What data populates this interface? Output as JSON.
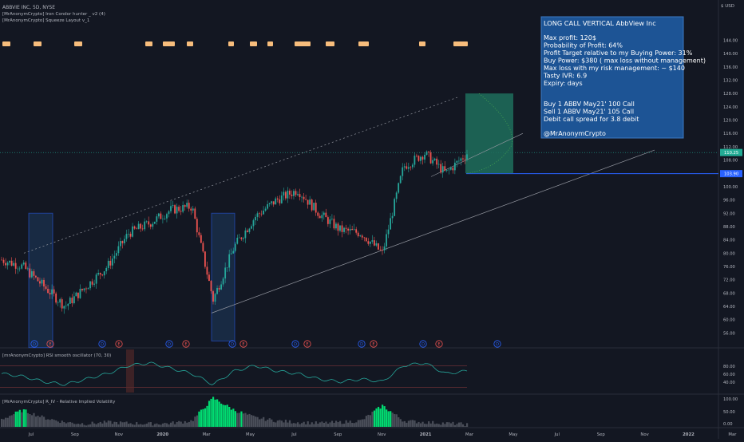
{
  "header": {
    "symbol": "ABBVIE INC, 5D, NYSE",
    "indicator1": "[MrAnonymCrypto] Iron Condor hunter _ v2 (4)",
    "indicator2": "[MrAnonymCrypto] Squeeze Layout v_1"
  },
  "price_axis": {
    "currency": "$ USD",
    "ticks": [
      "144.00",
      "140.00",
      "136.00",
      "132.00",
      "128.00",
      "124.00",
      "120.00",
      "116.00",
      "112.00",
      "108.00",
      "104.00",
      "100.00",
      "96.00",
      "92.00",
      "88.00",
      "84.00",
      "80.00",
      "76.00",
      "72.00",
      "68.00",
      "64.00",
      "60.00",
      "56.00"
    ],
    "current_price": "110.25",
    "target_level": "103.90"
  },
  "time_axis": [
    "Jul",
    "Sep",
    "Nov",
    "2020",
    "Mar",
    "May",
    "Jul",
    "Sep",
    "Nov",
    "2021",
    "Mar",
    "May",
    "Jul",
    "Sep",
    "Nov",
    "2022",
    "Mar"
  ],
  "info_box": {
    "title": "LONG CALL VERTICAL AbbView Inc",
    "lines": [
      "Max profit: 120$",
      "Probability of Profit: 64%",
      "Profit Target relative to my Buying Power: 31%",
      "Buy Power: $380 ( max loss without management)",
      "Max loss with my risk management: ~ $140",
      "Tasty IVR: 6.9",
      "Expiry:  days"
    ],
    "trade_lines": [
      "Buy 1 ABBV May21' 100 Call",
      "Sell 1 ABBV May21' 105 Call",
      "Debit call spread for 3.8 debit"
    ],
    "author": "@MrAnonymCrypto"
  },
  "event_markers": [
    "D",
    "E",
    "D",
    "E",
    "D",
    "E",
    "D",
    "E",
    "D",
    "E",
    "D",
    "E",
    "D",
    "E",
    "D",
    "E",
    "E"
  ],
  "rsi_panel": {
    "label": "[mrAnonymCrypto] RSI smooth oscillator (70, 30)",
    "ticks": [
      "80.00",
      "60.00",
      "40.00"
    ]
  },
  "iv_panel": {
    "label": "[MrAnonymCrypto] R_IV - Relative Implied Volatility",
    "ticks": [
      "100.00",
      "50.00",
      "0.00"
    ]
  },
  "colors": {
    "background": "#131722",
    "candle_up": "#26a69a",
    "candle_down": "#ef5350",
    "info_box": "#1e5aa0",
    "squeeze": "#f7bd7c",
    "profit_zone": "#1f6f5c",
    "price_line": "#2962ff"
  },
  "chart_data": {
    "type": "candlestick",
    "timeframe": "5D",
    "x": [
      "2019-05",
      "2019-06",
      "2019-07",
      "2019-08",
      "2019-09",
      "2019-10",
      "2019-11",
      "2019-12",
      "2020-01",
      "2020-02",
      "2020-03",
      "2020-04",
      "2020-05",
      "2020-06",
      "2020-07",
      "2020-08",
      "2020-09",
      "2020-10",
      "2020-11",
      "2020-12",
      "2021-01",
      "2021-02",
      "2021-03"
    ],
    "close": [
      78,
      76,
      70,
      64,
      70,
      76,
      86,
      89,
      93,
      94,
      66,
      82,
      91,
      96,
      99,
      92,
      87,
      86,
      80,
      106,
      110,
      104,
      110
    ],
    "ylim": [
      52,
      146
    ],
    "current_price": 110.25,
    "target": 103.9,
    "rsi": [
      55,
      50,
      40,
      35,
      45,
      55,
      70,
      75,
      65,
      55,
      35,
      60,
      70,
      60,
      55,
      45,
      40,
      45,
      40,
      70,
      75,
      55,
      60
    ],
    "rsi_levels": [
      70,
      30
    ],
    "relative_iv": [
      25,
      55,
      30,
      15,
      10,
      15,
      12,
      10,
      12,
      20,
      95,
      55,
      30,
      20,
      15,
      12,
      15,
      20,
      70,
      20,
      15,
      12,
      8
    ]
  }
}
